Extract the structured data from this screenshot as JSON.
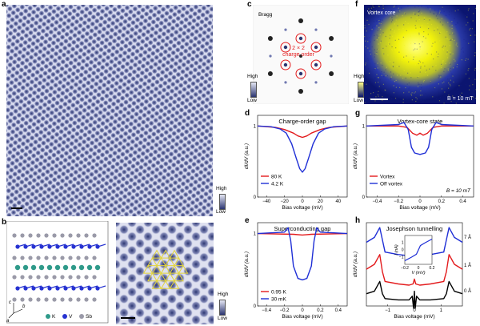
{
  "panels": {
    "a": {
      "label": "a",
      "colorbar_high": "High",
      "colorbar_low": "Low"
    },
    "b": {
      "label": "b",
      "legend": [
        "K",
        "V",
        "Sb"
      ],
      "axes": [
        "c",
        "b",
        "a"
      ],
      "colorbar_high": "High",
      "colorbar_low": "Low"
    },
    "c": {
      "label": "c",
      "title": "Bragg",
      "annotation_line1": "2 × 2",
      "annotation_line2": "charge order",
      "colorbar_high": "High",
      "colorbar_low": "Low"
    },
    "f": {
      "label": "f",
      "title": "Vortex core",
      "field": "B = 10 mT",
      "colorbar_high": "High",
      "colorbar_low": "Low"
    },
    "d": {
      "label": "d",
      "title": "Charge-order gap"
    },
    "g": {
      "label": "g",
      "title": "Vortex-core state",
      "field": "B = 10 mT"
    },
    "e": {
      "label": "e",
      "title": "Superconducting gap"
    },
    "h": {
      "label": "h",
      "title": "Josephson tunnelling",
      "offsets": [
        "7 Å",
        "1 Å",
        "0 Å"
      ],
      "inset_xlabel": "V (mV)",
      "inset_ylabel": "I (nA)"
    }
  },
  "colors": {
    "red": "#e31a1c",
    "blue": "#1f2fd6",
    "black": "#000000",
    "stm_dark": "#2a3470",
    "stm_light": "#e6e8f4",
    "yellow": "#f2f20a",
    "hex_line": "#e3d43a"
  },
  "chart_data": [
    {
      "id": "d",
      "type": "line",
      "title": "Charge-order gap",
      "xlabel": "Bias voltage (mV)",
      "ylabel": "dI/dV (a.u.)",
      "xlim": [
        -50,
        50
      ],
      "ylim": [
        0,
        1.15
      ],
      "xticks": [
        "−40",
        "−20",
        "0",
        "20",
        "40"
      ],
      "yticks": [
        "0",
        "1"
      ],
      "series": [
        {
          "name": "80 K",
          "color": "#e31a1c",
          "x": [
            -50,
            -30,
            -20,
            -10,
            -5,
            0,
            5,
            10,
            20,
            30,
            50
          ],
          "y": [
            1.0,
            0.98,
            0.95,
            0.9,
            0.86,
            0.84,
            0.86,
            0.9,
            0.95,
            0.98,
            1.0
          ]
        },
        {
          "name": "4.2 K",
          "color": "#1f2fd6",
          "x": [
            -50,
            -35,
            -25,
            -18,
            -12,
            -7,
            -3,
            0,
            3,
            7,
            12,
            18,
            25,
            35,
            50
          ],
          "y": [
            1.0,
            0.99,
            0.96,
            0.9,
            0.75,
            0.55,
            0.4,
            0.35,
            0.4,
            0.55,
            0.75,
            0.9,
            0.96,
            0.99,
            1.0
          ]
        }
      ]
    },
    {
      "id": "g",
      "type": "line",
      "title": "Vortex-core state",
      "xlabel": "Bias voltage (mV)",
      "ylabel": "dI/dV (a.u.)",
      "xlim": [
        -0.5,
        0.5
      ],
      "ylim": [
        0,
        1.15
      ],
      "xticks": [
        "−0.4",
        "−0.2",
        "0",
        "0.2",
        "0.4"
      ],
      "yticks": [
        "0",
        "1"
      ],
      "series": [
        {
          "name": "Vortex",
          "color": "#e31a1c",
          "x": [
            -0.5,
            -0.2,
            -0.12,
            -0.07,
            -0.03,
            0,
            0.03,
            0.07,
            0.12,
            0.2,
            0.5
          ],
          "y": [
            1.0,
            1.0,
            0.98,
            0.9,
            0.87,
            0.9,
            0.87,
            0.9,
            0.98,
            1.0,
            1.0
          ]
        },
        {
          "name": "Off vortex",
          "color": "#1f2fd6",
          "x": [
            -0.5,
            -0.2,
            -0.15,
            -0.11,
            -0.08,
            -0.05,
            0,
            0.05,
            0.08,
            0.11,
            0.15,
            0.2,
            0.5
          ],
          "y": [
            1.0,
            1.02,
            1.05,
            0.95,
            0.7,
            0.62,
            0.6,
            0.62,
            0.7,
            0.95,
            1.05,
            1.02,
            1.0
          ]
        }
      ]
    },
    {
      "id": "e",
      "type": "line",
      "title": "Superconducting gap",
      "xlabel": "Bias voltage (mV)",
      "ylabel": "dI/dV (a.u.)",
      "xlim": [
        -0.5,
        0.5
      ],
      "ylim": [
        0,
        1.15
      ],
      "xticks": [
        "−0.4",
        "−0.2",
        "0",
        "0.2",
        "0.4"
      ],
      "yticks": [
        "0",
        "1"
      ],
      "series": [
        {
          "name": "0.95 K",
          "color": "#e31a1c",
          "x": [
            -0.5,
            -0.1,
            0,
            0.1,
            0.5
          ],
          "y": [
            1.0,
            0.99,
            0.98,
            0.99,
            1.0
          ]
        },
        {
          "name": "30 mK",
          "color": "#1f2fd6",
          "x": [
            -0.5,
            -0.2,
            -0.16,
            -0.13,
            -0.1,
            -0.05,
            0,
            0.05,
            0.1,
            0.13,
            0.16,
            0.2,
            0.5
          ],
          "y": [
            1.0,
            1.02,
            1.08,
            0.9,
            0.55,
            0.38,
            0.36,
            0.38,
            0.55,
            0.9,
            1.08,
            1.02,
            1.0
          ]
        }
      ]
    },
    {
      "id": "h",
      "type": "line",
      "title": "Josephson tunnelling",
      "xlabel": "Bias voltage (mV)",
      "ylabel": "dI/dV (a.u.)",
      "xlim": [
        -1.8,
        1.8
      ],
      "ylim": [
        -0.2,
        3.2
      ],
      "xticks": [
        "−1",
        "0",
        "1"
      ],
      "yticks": [
        "0",
        "1"
      ],
      "series": [
        {
          "name": "7 Å",
          "color": "#1f2fd6",
          "x": [
            -1.8,
            -1.5,
            -1.3,
            -1.2,
            -1.1,
            -0.6,
            -0.2,
            -0.05,
            0,
            0.05,
            0.2,
            0.6,
            1.1,
            1.2,
            1.3,
            1.5,
            1.8
          ],
          "y": [
            2.4,
            2.6,
            3.0,
            2.5,
            2.0,
            1.9,
            1.85,
            1.9,
            2.0,
            1.9,
            1.85,
            1.9,
            2.0,
            2.5,
            3.0,
            2.6,
            2.4
          ]
        },
        {
          "name": "1 Å",
          "color": "#e31a1c",
          "x": [
            -1.8,
            -1.5,
            -1.3,
            -1.2,
            -1.1,
            -0.6,
            -0.2,
            -0.05,
            0,
            0.05,
            0.2,
            0.6,
            1.1,
            1.2,
            1.3,
            1.5,
            1.8
          ],
          "y": [
            1.3,
            1.5,
            1.9,
            1.2,
            0.8,
            0.7,
            0.65,
            0.7,
            0.9,
            0.7,
            0.65,
            0.7,
            0.8,
            1.2,
            1.9,
            1.5,
            1.3
          ]
        },
        {
          "name": "0 Å",
          "color": "#000000",
          "x": [
            -1.8,
            -1.5,
            -1.3,
            -1.2,
            -1.1,
            -0.6,
            -0.2,
            -0.08,
            -0.03,
            0,
            0.03,
            0.08,
            0.2,
            0.6,
            1.1,
            1.2,
            1.3,
            1.5,
            1.8
          ],
          "y": [
            0.3,
            0.4,
            0.8,
            0.3,
            0.1,
            0.05,
            0.05,
            0.2,
            -0.3,
            0.4,
            -0.3,
            0.2,
            0.05,
            0.05,
            0.1,
            0.3,
            0.8,
            0.4,
            0.3
          ]
        }
      ],
      "inset": {
        "xlabel": "V (mV)",
        "ylabel": "I (nA)",
        "xlim": [
          -0.2,
          0.2
        ],
        "ylim": [
          -2,
          2
        ],
        "xticks": [
          "−0.2",
          "0",
          "0.2"
        ],
        "yticks": [
          "−1",
          "0",
          "1"
        ],
        "x": [
          -0.2,
          -0.1,
          -0.03,
          0,
          0.03,
          0.1,
          0.2
        ],
        "y": [
          -1.5,
          -1.0,
          -0.6,
          0,
          0.6,
          1.0,
          1.5
        ]
      }
    }
  ]
}
